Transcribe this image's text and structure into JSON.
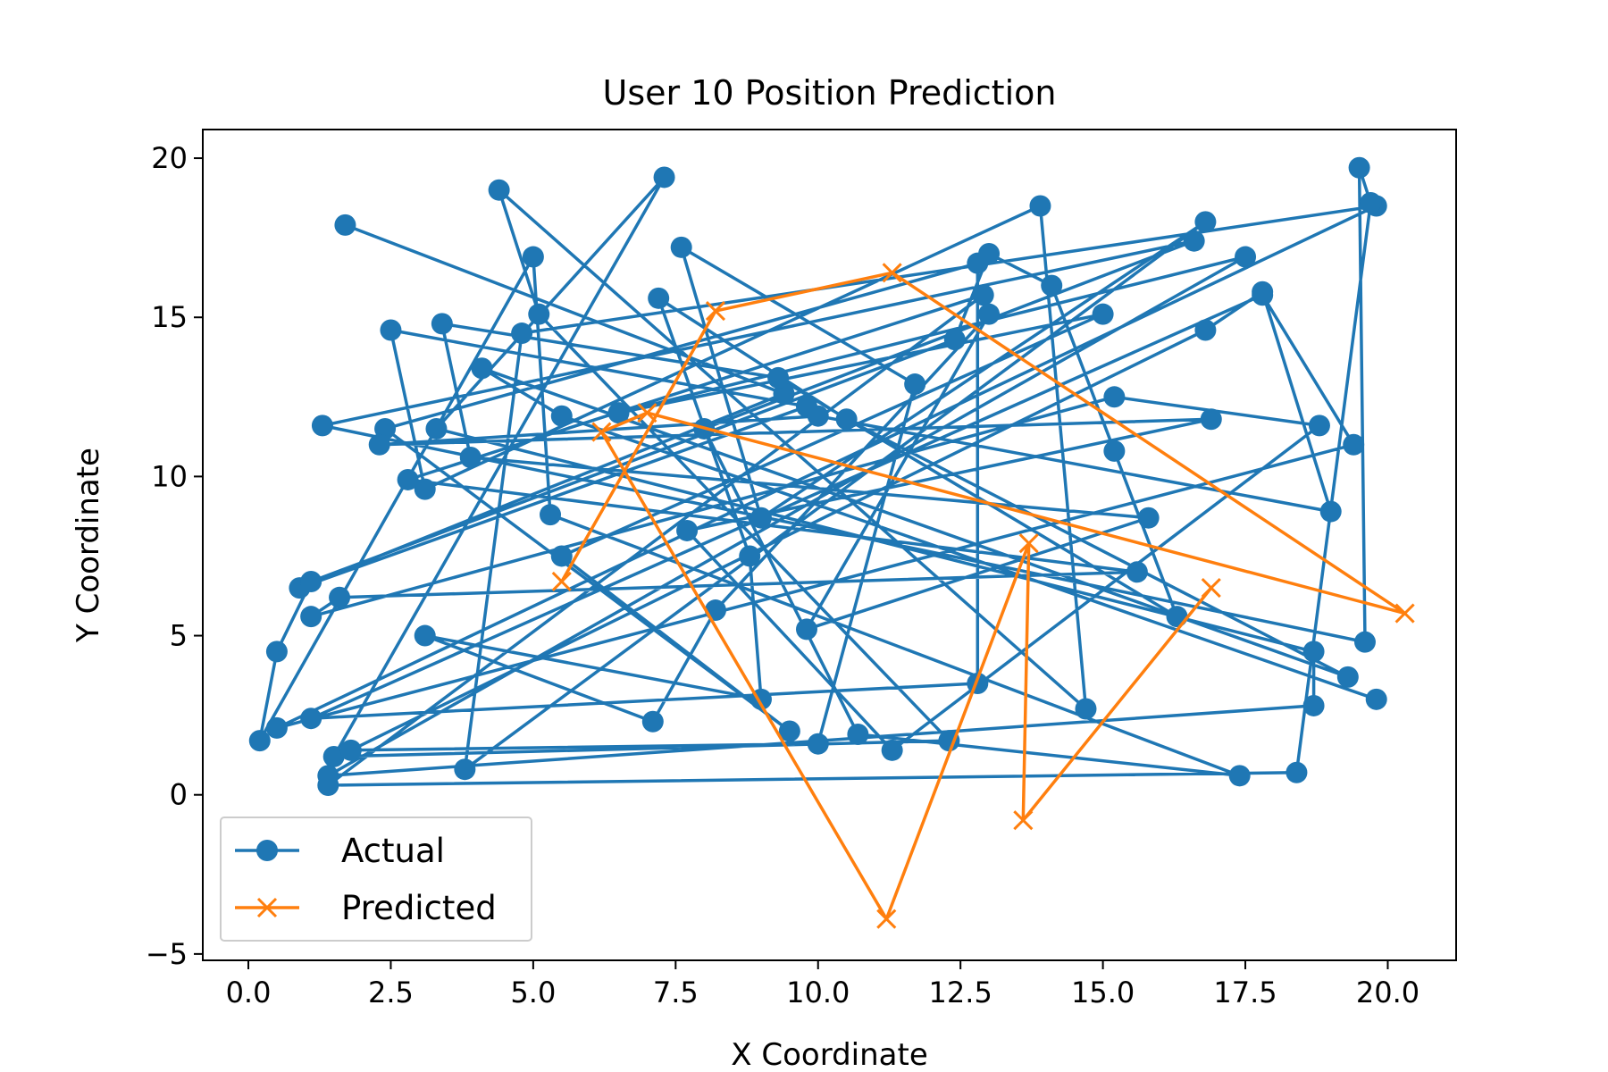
{
  "chart_data": {
    "type": "line",
    "title": "User 10 Position Prediction",
    "xlabel": "X Coordinate",
    "ylabel": "Y Coordinate",
    "xlim": [
      -0.8,
      21.2
    ],
    "ylim": [
      -5.2,
      20.9
    ],
    "x_ticks": [
      0,
      2.5,
      5,
      7.5,
      10,
      12.5,
      15,
      17.5,
      20
    ],
    "x_tick_labels": [
      "0.0",
      "2.5",
      "5.0",
      "7.5",
      "10.0",
      "12.5",
      "15.0",
      "17.5",
      "20.0"
    ],
    "y_ticks": [
      -5,
      0,
      5,
      10,
      15,
      20
    ],
    "y_tick_labels": [
      "−5",
      "0",
      "5",
      "10",
      "15",
      "20"
    ],
    "grid": false,
    "legend_position": "lower-left",
    "series": [
      {
        "name": "Actual",
        "color": "#1f77b4",
        "marker": "circle",
        "points": [
          [
            1.7,
            17.9
          ],
          [
            9.4,
            12.6
          ],
          [
            0.9,
            6.5
          ],
          [
            9.8,
            12.2
          ],
          [
            2.5,
            14.6
          ],
          [
            3.1,
            9.6
          ],
          [
            13.9,
            18.5
          ],
          [
            14.7,
            2.7
          ],
          [
            4.4,
            19.0
          ],
          [
            5.1,
            15.1
          ],
          [
            12.3,
            1.7
          ],
          [
            1.5,
            1.2
          ],
          [
            7.3,
            19.4
          ],
          [
            3.3,
            11.5
          ],
          [
            18.7,
            4.5
          ],
          [
            18.7,
            2.8
          ],
          [
            1.4,
            0.6
          ],
          [
            17.5,
            16.9
          ],
          [
            6.5,
            12.0
          ],
          [
            15.0,
            15.1
          ],
          [
            5.5,
            7.5
          ],
          [
            9.5,
            2.0
          ],
          [
            2.4,
            11.5
          ],
          [
            12.8,
            16.7
          ],
          [
            12.8,
            3.5
          ],
          [
            1.1,
            2.4
          ],
          [
            17.8,
            15.7
          ],
          [
            19.4,
            11.0
          ],
          [
            0.5,
            2.1
          ],
          [
            19.8,
            18.5
          ],
          [
            4.8,
            14.5
          ],
          [
            3.8,
            0.8
          ],
          [
            16.8,
            18.0
          ],
          [
            9.0,
            8.7
          ],
          [
            7.6,
            17.2
          ],
          [
            11.7,
            12.9
          ],
          [
            10.0,
            1.6
          ],
          [
            1.8,
            1.4
          ],
          [
            16.8,
            14.6
          ],
          [
            17.8,
            15.8
          ],
          [
            19.0,
            8.9
          ],
          [
            10.0,
            11.9
          ],
          [
            2.3,
            11.0
          ],
          [
            16.9,
            11.8
          ],
          [
            7.7,
            8.3
          ],
          [
            11.3,
            1.4
          ],
          [
            18.8,
            11.6
          ],
          [
            15.2,
            12.5
          ],
          [
            1.1,
            5.6
          ],
          [
            1.6,
            6.2
          ],
          [
            15.6,
            7.0
          ],
          [
            2.8,
            9.9
          ],
          [
            12.9,
            15.7
          ],
          [
            1.4,
            0.3
          ],
          [
            18.4,
            0.7
          ],
          [
            19.7,
            18.6
          ],
          [
            19.5,
            19.7
          ],
          [
            19.6,
            4.8
          ],
          [
            1.3,
            11.6
          ],
          [
            16.6,
            17.4
          ],
          [
            8.0,
            11.5
          ],
          [
            10.7,
            1.9
          ],
          [
            17.4,
            0.6
          ],
          [
            5.3,
            8.8
          ],
          [
            5.0,
            16.9
          ],
          [
            0.2,
            1.7
          ],
          [
            0.5,
            4.5
          ],
          [
            1.1,
            6.7
          ],
          [
            12.4,
            14.3
          ],
          [
            13.0,
            17.0
          ],
          [
            14.1,
            16.0
          ],
          [
            15.2,
            10.8
          ],
          [
            16.3,
            5.6
          ],
          [
            9.3,
            13.1
          ],
          [
            3.4,
            14.8
          ],
          [
            3.9,
            10.6
          ],
          [
            15.8,
            8.7
          ],
          [
            9.8,
            5.2
          ],
          [
            13.0,
            15.1
          ],
          [
            8.2,
            5.8
          ],
          [
            7.1,
            2.3
          ],
          [
            3.1,
            5.0
          ],
          [
            9.0,
            3.0
          ],
          [
            8.8,
            7.5
          ],
          [
            7.2,
            15.6
          ],
          [
            10.5,
            11.8
          ],
          [
            19.3,
            3.7
          ],
          [
            4.1,
            13.4
          ],
          [
            5.5,
            11.9
          ],
          [
            19.8,
            3.0
          ]
        ]
      },
      {
        "name": "Predicted",
        "color": "#ff7f0e",
        "marker": "x",
        "points": [
          [
            5.5,
            6.7
          ],
          [
            8.2,
            15.2
          ],
          [
            11.3,
            16.4
          ],
          [
            20.3,
            5.7
          ],
          [
            7.0,
            12.0
          ],
          [
            6.2,
            11.4
          ],
          [
            11.2,
            -3.9
          ],
          [
            13.7,
            7.9
          ],
          [
            13.6,
            -0.8
          ],
          [
            16.9,
            6.5
          ]
        ]
      }
    ]
  }
}
